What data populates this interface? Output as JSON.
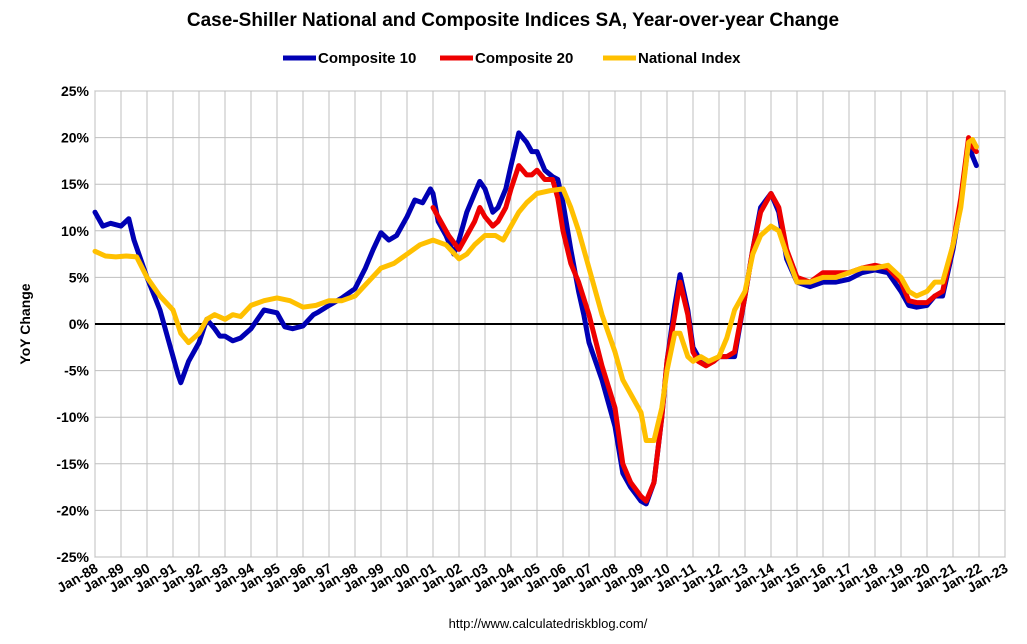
{
  "chart_data": {
    "type": "line",
    "title": "Case-Shiller National and Composite Indices SA, Year-over-year Change",
    "ylabel": "YoY Change",
    "source": "http://www.calculatedriskblog.com/",
    "ylim": [
      -25,
      25
    ],
    "y_ticks": [
      -25,
      -20,
      -15,
      -10,
      -5,
      0,
      5,
      10,
      15,
      20,
      25
    ],
    "y_tick_labels": [
      "-25%",
      "-20%",
      "-15%",
      "-10%",
      "-5%",
      "0%",
      "5%",
      "10%",
      "15%",
      "20%",
      "25%"
    ],
    "xlim": [
      1988,
      2023
    ],
    "x_tick_labels": [
      "Jan-88",
      "Jan-89",
      "Jan-90",
      "Jan-91",
      "Jan-92",
      "Jan-93",
      "Jan-94",
      "Jan-95",
      "Jan-96",
      "Jan-97",
      "Jan-98",
      "Jan-99",
      "Jan-00",
      "Jan-01",
      "Jan-02",
      "Jan-03",
      "Jan-04",
      "Jan-05",
      "Jan-06",
      "Jan-07",
      "Jan-08",
      "Jan-09",
      "Jan-10",
      "Jan-11",
      "Jan-12",
      "Jan-13",
      "Jan-14",
      "Jan-15",
      "Jan-16",
      "Jan-17",
      "Jan-18",
      "Jan-19",
      "Jan-20",
      "Jan-21",
      "Jan-22",
      "Jan-23"
    ],
    "grid": true,
    "legend_position": "top-center",
    "series": [
      {
        "name": "Composite 10",
        "color": "#0000b4",
        "x": [
          1988.0,
          1988.3,
          1988.6,
          1989.0,
          1989.3,
          1989.5,
          1990.0,
          1990.5,
          1990.8,
          1991.0,
          1991.2,
          1991.3,
          1991.6,
          1992.0,
          1992.3,
          1992.6,
          1992.8,
          1993.0,
          1993.3,
          1993.6,
          1994.0,
          1994.5,
          1995.0,
          1995.3,
          1995.6,
          1996.0,
          1996.4,
          1996.6,
          1997.0,
          1997.5,
          1998.0,
          1998.4,
          1998.7,
          1999.0,
          1999.3,
          1999.6,
          2000.0,
          2000.3,
          2000.6,
          2000.9,
          2001.0,
          2001.2,
          2001.5,
          2001.8,
          2002.0,
          2002.3,
          2002.6,
          2002.8,
          2003.0,
          2003.3,
          2003.5,
          2003.8,
          2004.0,
          2004.3,
          2004.6,
          2004.8,
          2005.0,
          2005.3,
          2005.6,
          2005.8,
          2006.0,
          2006.3,
          2006.6,
          2006.8,
          2007.0,
          2007.5,
          2008.0,
          2008.3,
          2008.6,
          2009.0,
          2009.2,
          2009.5,
          2009.8,
          2010.0,
          2010.3,
          2010.5,
          2010.8,
          2011.0,
          2011.2,
          2011.5,
          2011.8,
          2012.0,
          2012.3,
          2012.6,
          2013.0,
          2013.3,
          2013.6,
          2014.0,
          2014.3,
          2014.6,
          2015.0,
          2015.5,
          2016.0,
          2016.5,
          2017.0,
          2017.5,
          2018.0,
          2018.5,
          2019.0,
          2019.3,
          2019.6,
          2020.0,
          2020.3,
          2020.6,
          2021.0,
          2021.3,
          2021.6,
          2021.75,
          2021.9
        ],
        "y": [
          12.0,
          10.5,
          10.8,
          10.5,
          11.3,
          9.0,
          5.0,
          1.5,
          -1.5,
          -3.5,
          -5.5,
          -6.3,
          -4.0,
          -2.0,
          0.5,
          -0.5,
          -1.3,
          -1.3,
          -1.8,
          -1.5,
          -0.5,
          1.5,
          1.2,
          -0.3,
          -0.5,
          -0.2,
          1.0,
          1.3,
          2.0,
          2.8,
          3.8,
          6.0,
          8.0,
          9.8,
          9.0,
          9.5,
          11.5,
          13.3,
          13.0,
          14.5,
          14.0,
          11.0,
          9.5,
          7.5,
          9.0,
          12.0,
          14.0,
          15.3,
          14.5,
          12.0,
          12.5,
          14.5,
          17.0,
          20.5,
          19.5,
          18.5,
          18.5,
          16.5,
          15.8,
          15.5,
          13.0,
          8.0,
          3.5,
          1.0,
          -2.0,
          -6.0,
          -11.0,
          -16.0,
          -17.5,
          -19.0,
          -19.3,
          -17.0,
          -10.0,
          -4.0,
          2.0,
          5.3,
          1.5,
          -2.5,
          -3.5,
          -4.3,
          -4.0,
          -3.5,
          -3.5,
          -3.5,
          3.0,
          8.0,
          12.5,
          14.0,
          12.0,
          7.0,
          4.5,
          4.0,
          4.5,
          4.5,
          4.8,
          5.5,
          5.8,
          5.5,
          3.5,
          2.0,
          1.8,
          2.0,
          3.0,
          3.0,
          8.0,
          13.0,
          19.5,
          18.0,
          17.0
        ]
      },
      {
        "name": "Composite 20",
        "color": "#ee0000",
        "x": [
          2001.0,
          2001.3,
          2001.6,
          2002.0,
          2002.3,
          2002.6,
          2002.8,
          2003.0,
          2003.3,
          2003.5,
          2003.8,
          2004.0,
          2004.3,
          2004.6,
          2004.8,
          2005.0,
          2005.3,
          2005.6,
          2005.8,
          2006.0,
          2006.3,
          2006.6,
          2007.0,
          2007.5,
          2008.0,
          2008.3,
          2008.6,
          2009.0,
          2009.2,
          2009.5,
          2009.8,
          2010.0,
          2010.3,
          2010.5,
          2010.8,
          2011.0,
          2011.2,
          2011.5,
          2011.8,
          2012.0,
          2012.3,
          2012.6,
          2013.0,
          2013.3,
          2013.6,
          2014.0,
          2014.3,
          2014.6,
          2015.0,
          2015.5,
          2016.0,
          2016.5,
          2017.0,
          2017.5,
          2018.0,
          2018.5,
          2019.0,
          2019.3,
          2019.6,
          2020.0,
          2020.3,
          2020.6,
          2021.0,
          2021.3,
          2021.6,
          2021.75,
          2021.9
        ],
        "y": [
          12.5,
          11.0,
          9.5,
          8.0,
          9.5,
          11.0,
          12.5,
          11.5,
          10.5,
          11.0,
          12.5,
          14.5,
          17.0,
          16.0,
          16.0,
          16.5,
          15.5,
          15.5,
          13.5,
          10.0,
          6.5,
          4.5,
          1.0,
          -4.5,
          -9.0,
          -15.0,
          -17.0,
          -18.5,
          -19.0,
          -17.0,
          -10.0,
          -4.0,
          1.0,
          4.5,
          1.0,
          -3.0,
          -4.0,
          -4.5,
          -4.0,
          -3.5,
          -3.5,
          -3.0,
          3.0,
          8.0,
          12.0,
          14.0,
          12.5,
          8.0,
          5.0,
          4.5,
          5.5,
          5.5,
          5.5,
          6.0,
          6.3,
          6.0,
          4.5,
          2.5,
          2.3,
          2.3,
          3.0,
          3.5,
          8.5,
          13.5,
          20.0,
          19.0,
          18.5
        ]
      },
      {
        "name": "National Index",
        "color": "#ffc000",
        "x": [
          1988.0,
          1988.4,
          1988.8,
          1989.2,
          1989.6,
          1990.0,
          1990.5,
          1991.0,
          1991.3,
          1991.6,
          1992.0,
          1992.3,
          1992.6,
          1993.0,
          1993.3,
          1993.6,
          1994.0,
          1994.5,
          1995.0,
          1995.5,
          1996.0,
          1996.5,
          1997.0,
          1997.5,
          1998.0,
          1998.5,
          1999.0,
          1999.5,
          2000.0,
          2000.5,
          2001.0,
          2001.5,
          2002.0,
          2002.3,
          2002.6,
          2003.0,
          2003.4,
          2003.7,
          2004.0,
          2004.3,
          2004.6,
          2005.0,
          2005.5,
          2006.0,
          2006.3,
          2006.6,
          2007.0,
          2007.5,
          2008.0,
          2008.3,
          2008.6,
          2009.0,
          2009.2,
          2009.5,
          2009.8,
          2010.0,
          2010.3,
          2010.5,
          2010.8,
          2011.0,
          2011.3,
          2011.6,
          2012.0,
          2012.3,
          2012.6,
          2013.0,
          2013.3,
          2013.6,
          2014.0,
          2014.3,
          2014.6,
          2015.0,
          2015.5,
          2016.0,
          2016.5,
          2017.0,
          2017.5,
          2018.0,
          2018.5,
          2019.0,
          2019.3,
          2019.6,
          2020.0,
          2020.3,
          2020.6,
          2021.0,
          2021.3,
          2021.6,
          2021.75,
          2021.9
        ],
        "y": [
          7.8,
          7.3,
          7.2,
          7.3,
          7.2,
          5.0,
          3.0,
          1.5,
          -1.0,
          -2.0,
          -1.0,
          0.5,
          1.0,
          0.5,
          1.0,
          0.8,
          2.0,
          2.5,
          2.8,
          2.5,
          1.8,
          2.0,
          2.5,
          2.5,
          3.0,
          4.5,
          6.0,
          6.5,
          7.5,
          8.5,
          9.0,
          8.5,
          7.0,
          7.5,
          8.5,
          9.5,
          9.5,
          9.0,
          10.5,
          12.0,
          13.0,
          14.0,
          14.3,
          14.5,
          12.5,
          10.0,
          6.0,
          1.0,
          -3.0,
          -6.0,
          -7.5,
          -9.5,
          -12.5,
          -12.5,
          -9.0,
          -5.0,
          -1.0,
          -1.0,
          -3.5,
          -4.0,
          -3.5,
          -4.0,
          -3.5,
          -1.5,
          1.5,
          3.5,
          7.5,
          9.5,
          10.5,
          10.0,
          7.5,
          4.5,
          4.5,
          5.0,
          5.0,
          5.5,
          6.0,
          6.0,
          6.3,
          5.0,
          3.5,
          3.0,
          3.5,
          4.5,
          4.5,
          8.5,
          12.5,
          19.5,
          19.8,
          19.0
        ]
      }
    ]
  }
}
